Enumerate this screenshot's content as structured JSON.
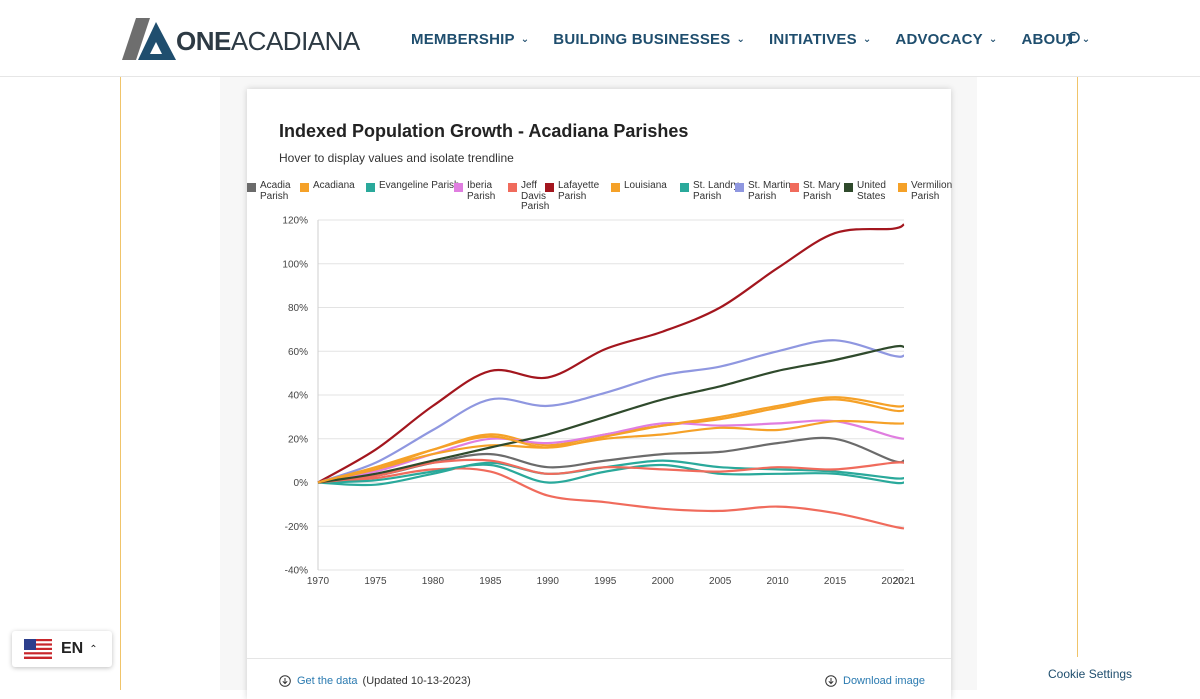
{
  "header": {
    "logo_one": "ONE",
    "logo_rest": "ACADIANA",
    "nav": [
      {
        "label": "MEMBERSHIP"
      },
      {
        "label": "BUILDING BUSINESSES"
      },
      {
        "label": "INITIATIVES"
      },
      {
        "label": "ADVOCACY"
      },
      {
        "label": "ABOUT"
      }
    ],
    "search_icon": "search-icon"
  },
  "card": {
    "title": "Indexed Population Growth - Acadiana Parishes",
    "subtitle": "Hover to display values and isolate trendline",
    "footer": {
      "get_data": "Get the data",
      "updated": "(Updated 10-13-2023)",
      "download": "Download image"
    }
  },
  "lang": {
    "code": "EN",
    "flag_icon": "us-flag-icon"
  },
  "cookie": "Cookie Settings",
  "chart_data": {
    "type": "line",
    "title": "Indexed Population Growth - Acadiana Parishes",
    "x": [
      1970,
      1975,
      1980,
      1985,
      1990,
      1995,
      2000,
      2005,
      2010,
      2015,
      2020,
      2021
    ],
    "y_ticks": [
      "120%",
      "100%",
      "80%",
      "60%",
      "40%",
      "20%",
      "0%",
      "-20%",
      "-40%"
    ],
    "ylim": [
      -40,
      120
    ],
    "grid": true,
    "legend_position": "top",
    "series": [
      {
        "name": "Acadia Parish",
        "color": "#6b6b6b",
        "values": [
          0,
          3,
          9,
          13,
          7,
          10,
          13,
          14,
          18,
          20,
          10,
          10
        ]
      },
      {
        "name": "Acadiana",
        "color": "#f5a128",
        "values": [
          0,
          6,
          15,
          22,
          17,
          22,
          26,
          29,
          34,
          38,
          33,
          33
        ]
      },
      {
        "name": "Evangeline Parish",
        "color": "#2aa99b",
        "values": [
          0,
          -1,
          4,
          9,
          4,
          7,
          10,
          7,
          6,
          5,
          2,
          2
        ]
      },
      {
        "name": "Iberia Parish",
        "color": "#e07ee0",
        "values": [
          0,
          5,
          13,
          20,
          18,
          22,
          27,
          26,
          27,
          28,
          21,
          20
        ]
      },
      {
        "name": "Jeff Davis Parish",
        "color": "#f06b5c",
        "values": [
          0,
          2,
          6,
          5,
          -6,
          -9,
          -12,
          -13,
          -11,
          -14,
          -20,
          -21
        ]
      },
      {
        "name": "Lafayette Parish",
        "color": "#a3161e",
        "values": [
          0,
          15,
          35,
          51,
          48,
          61,
          69,
          80,
          98,
          114,
          116,
          118
        ]
      },
      {
        "name": "Louisiana",
        "color": "#f5a128",
        "values": [
          0,
          6,
          13,
          17,
          16,
          20,
          22,
          25,
          24,
          28,
          27,
          27
        ]
      },
      {
        "name": "St. Landry Parish",
        "color": "#2aa99b",
        "values": [
          0,
          1,
          5,
          8,
          0,
          5,
          8,
          4,
          4,
          4,
          0,
          0
        ]
      },
      {
        "name": "St. Martin Parish",
        "color": "#8f97e0",
        "values": [
          0,
          9,
          24,
          38,
          35,
          41,
          49,
          53,
          60,
          65,
          58,
          58
        ]
      },
      {
        "name": "St. Mary Parish",
        "color": "#f06b5c",
        "values": [
          0,
          3,
          9,
          10,
          4,
          7,
          6,
          5,
          7,
          6,
          9,
          9
        ]
      },
      {
        "name": "United States",
        "color": "#2f4a2c",
        "values": [
          0,
          4,
          10,
          16,
          22,
          30,
          38,
          44,
          51,
          56,
          62,
          62
        ]
      },
      {
        "name": "Vermilion Parish",
        "color": "#f5a128",
        "values": [
          0,
          7,
          15,
          21,
          16,
          21,
          26,
          30,
          35,
          39,
          35,
          35
        ]
      }
    ]
  }
}
